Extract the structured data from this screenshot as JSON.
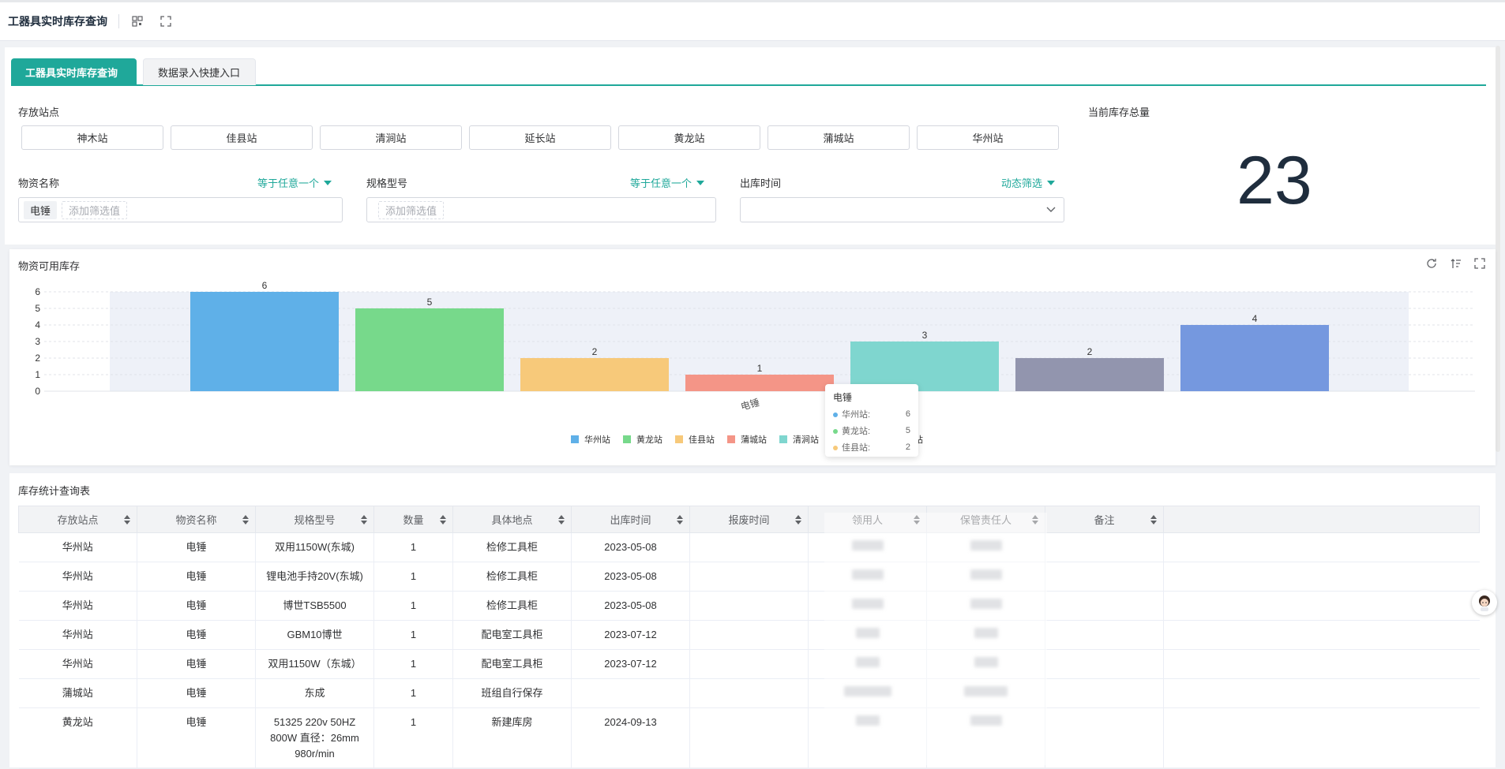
{
  "topbar": {
    "title": "工器具实时库存查询"
  },
  "tabs": [
    {
      "label": "工器具实时库存查询",
      "active": true
    },
    {
      "label": "数据录入快捷入口",
      "active": false
    }
  ],
  "filters": {
    "station_label": "存放站点",
    "stations": [
      "神木站",
      "佳县站",
      "清涧站",
      "延长站",
      "黄龙站",
      "蒲城站",
      "华州站"
    ],
    "total_label": "当前库存总量",
    "total_value": "23",
    "material": {
      "label": "物资名称",
      "mode": "等于任意一个",
      "chip": "电锤",
      "placeholder": "添加筛选值"
    },
    "spec": {
      "label": "规格型号",
      "mode": "等于任意一个",
      "placeholder": "添加筛选值"
    },
    "outtime": {
      "label": "出库时间",
      "mode": "动态筛选"
    }
  },
  "chart_title": "物资可用库存",
  "chart_data": {
    "type": "bar",
    "categories": [
      "电锤"
    ],
    "series": [
      {
        "name": "华州站",
        "values": [
          6
        ],
        "color": "#5fb0e8"
      },
      {
        "name": "黄龙站",
        "values": [
          5
        ],
        "color": "#77d98b"
      },
      {
        "name": "佳县站",
        "values": [
          2
        ],
        "color": "#f7c97a"
      },
      {
        "name": "蒲城站",
        "values": [
          1
        ],
        "color": "#f49587"
      },
      {
        "name": "清涧站",
        "values": [
          3
        ],
        "color": "#7fd6cf"
      },
      {
        "name": "神木站",
        "values": [
          2
        ],
        "color": "#9295ae"
      },
      {
        "name": "延长站",
        "values": [
          4
        ],
        "color": "#7598df"
      }
    ],
    "yticks": [
      0,
      1,
      2,
      3,
      4,
      5,
      6
    ],
    "ylim": [
      0,
      6
    ],
    "legend": "bottom",
    "grid": true
  },
  "tooltip": {
    "title": "电锤",
    "rows": [
      {
        "name": "华州站:",
        "value": "6",
        "color": "#5fb0e8"
      },
      {
        "name": "黄龙站:",
        "value": "5",
        "color": "#77d98b"
      },
      {
        "name": "佳县站:",
        "value": "2",
        "color": "#f7c97a"
      }
    ]
  },
  "table": {
    "title": "库存统计查询表",
    "headers": [
      "存放站点",
      "物资名称",
      "规格型号",
      "数量",
      "具体地点",
      "出库时间",
      "报废时间",
      "领用人",
      "保管责任人",
      "备注"
    ],
    "rows": [
      {
        "station": "华州站",
        "name": "电锤",
        "spec": "双用1150W(东城)",
        "qty": "1",
        "place": "检修工具柜",
        "out": "2023-05-08"
      },
      {
        "station": "华州站",
        "name": "电锤",
        "spec": "锂电池手持20V(东城)",
        "qty": "1",
        "place": "检修工具柜",
        "out": "2023-05-08"
      },
      {
        "station": "华州站",
        "name": "电锤",
        "spec": "博世TSB5500",
        "qty": "1",
        "place": "检修工具柜",
        "out": "2023-05-08"
      },
      {
        "station": "华州站",
        "name": "电锤",
        "spec": "GBM10博世",
        "qty": "1",
        "place": "配电室工具柜",
        "out": "2023-07-12"
      },
      {
        "station": "华州站",
        "name": "电锤",
        "spec": "双用1150W（东城）",
        "qty": "1",
        "place": "配电室工具柜",
        "out": "2023-07-12"
      },
      {
        "station": "蒲城站",
        "name": "电锤",
        "spec": "东成",
        "qty": "1",
        "place": "班组自行保存",
        "out": ""
      },
      {
        "station": "黄龙站",
        "name": "电锤",
        "spec": "51325 220v 50HZ 800W 直径：26mm 980r/min",
        "qty": "1",
        "place": "新建库房",
        "out": "2024-09-13"
      }
    ]
  }
}
